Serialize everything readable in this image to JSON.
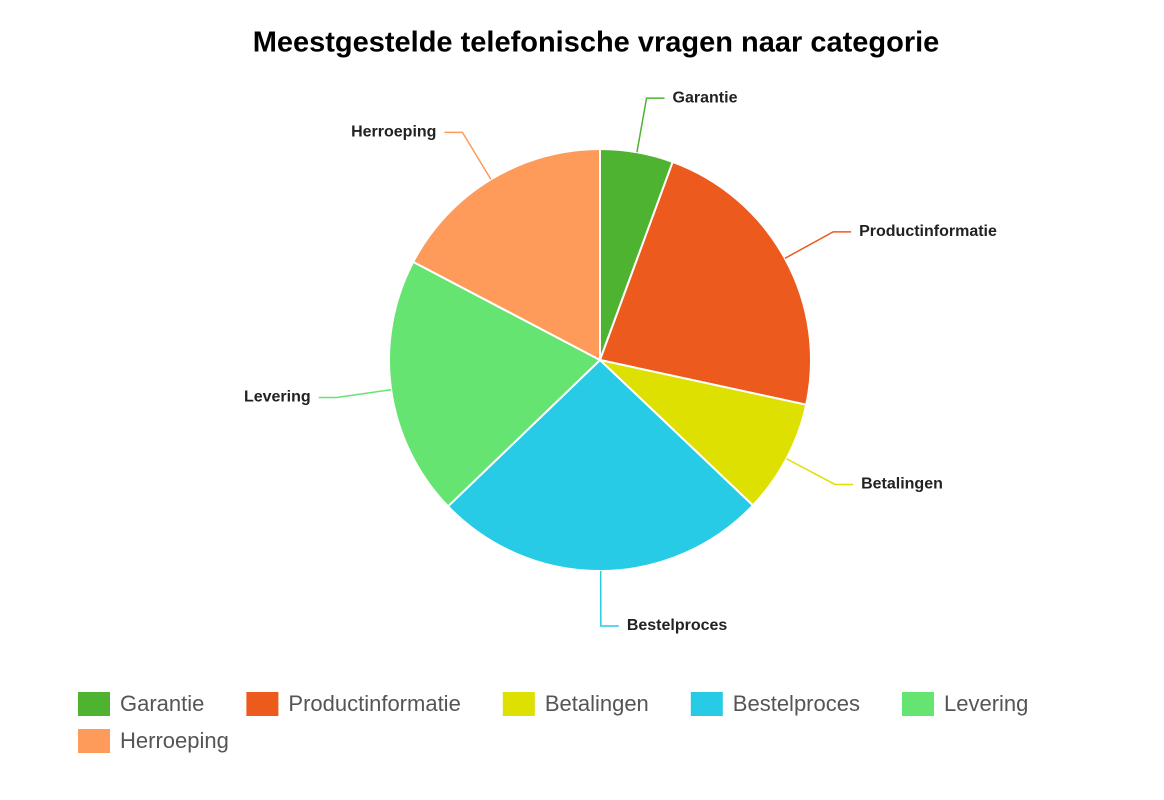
{
  "chart_data": {
    "type": "pie",
    "title": "Meestgestelde telefonische vragen naar categorie",
    "categories": [
      "Garantie",
      "Productinformatie",
      "Betalingen",
      "Bestelproces",
      "Levering",
      "Herroeping"
    ],
    "values": [
      5.6,
      22.8,
      8.7,
      25.7,
      19.9,
      17.3
    ],
    "colors": [
      "#4fb332",
      "#ec5a1e",
      "#dde000",
      "#27cbe5",
      "#66e472",
      "#fe9a5a"
    ],
    "legend": "bottom"
  }
}
